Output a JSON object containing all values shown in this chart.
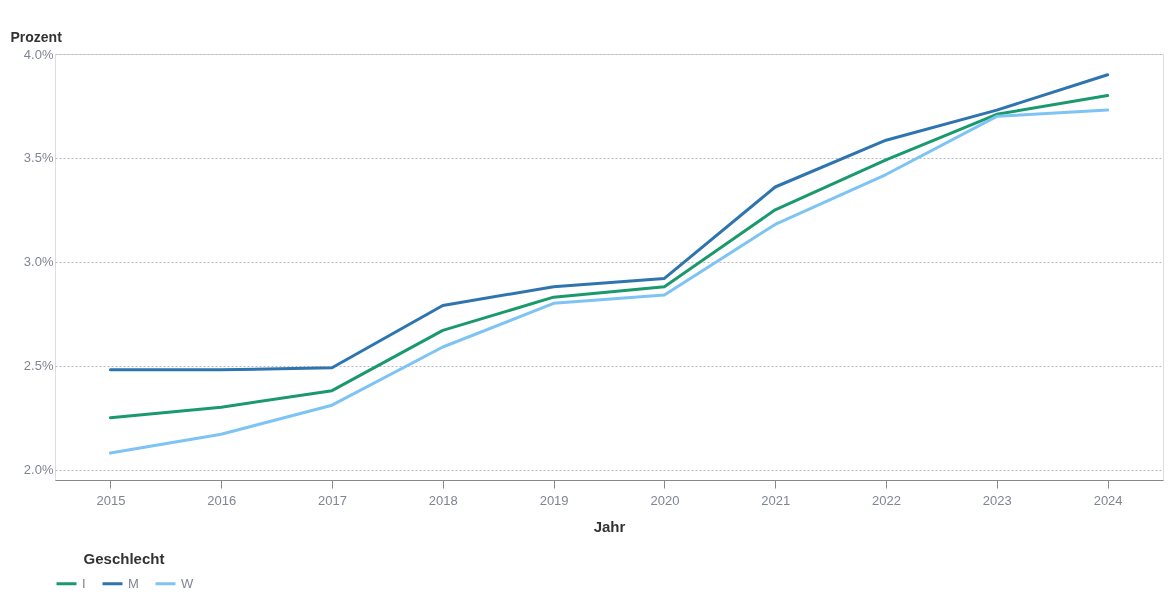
{
  "chart_data": {
    "type": "line",
    "xlabel": "Jahr",
    "ylabel": "Prozent",
    "legend_title": "Geschlecht",
    "legend": "bottom",
    "grid": "y",
    "line_style": "solid",
    "marker": "none",
    "categories": [
      "2015",
      "2016",
      "2017",
      "2018",
      "2019",
      "2020",
      "2021",
      "2022",
      "2023",
      "2024"
    ],
    "ylim": [
      1.95,
      4.0
    ],
    "yticks": [
      {
        "value": 2.0,
        "label": "2.0%"
      },
      {
        "value": 2.5,
        "label": "2.5%"
      },
      {
        "value": 3.0,
        "label": "3.0%"
      },
      {
        "value": 3.5,
        "label": "3.5%"
      },
      {
        "value": 4.0,
        "label": "4.0%"
      }
    ],
    "series": [
      {
        "name": "I",
        "color": "#1a9a6c",
        "values": [
          2.25,
          2.3,
          2.38,
          2.67,
          2.83,
          2.88,
          3.25,
          3.49,
          3.71,
          3.8
        ]
      },
      {
        "name": "M",
        "color": "#2e75b0",
        "values": [
          2.48,
          2.48,
          2.49,
          2.79,
          2.88,
          2.92,
          3.36,
          3.585,
          3.73,
          3.9
        ]
      },
      {
        "name": "W",
        "color": "#7dc4f5",
        "values": [
          2.08,
          2.17,
          2.31,
          2.59,
          2.8,
          2.84,
          3.18,
          3.42,
          3.7,
          3.73
        ]
      }
    ]
  }
}
